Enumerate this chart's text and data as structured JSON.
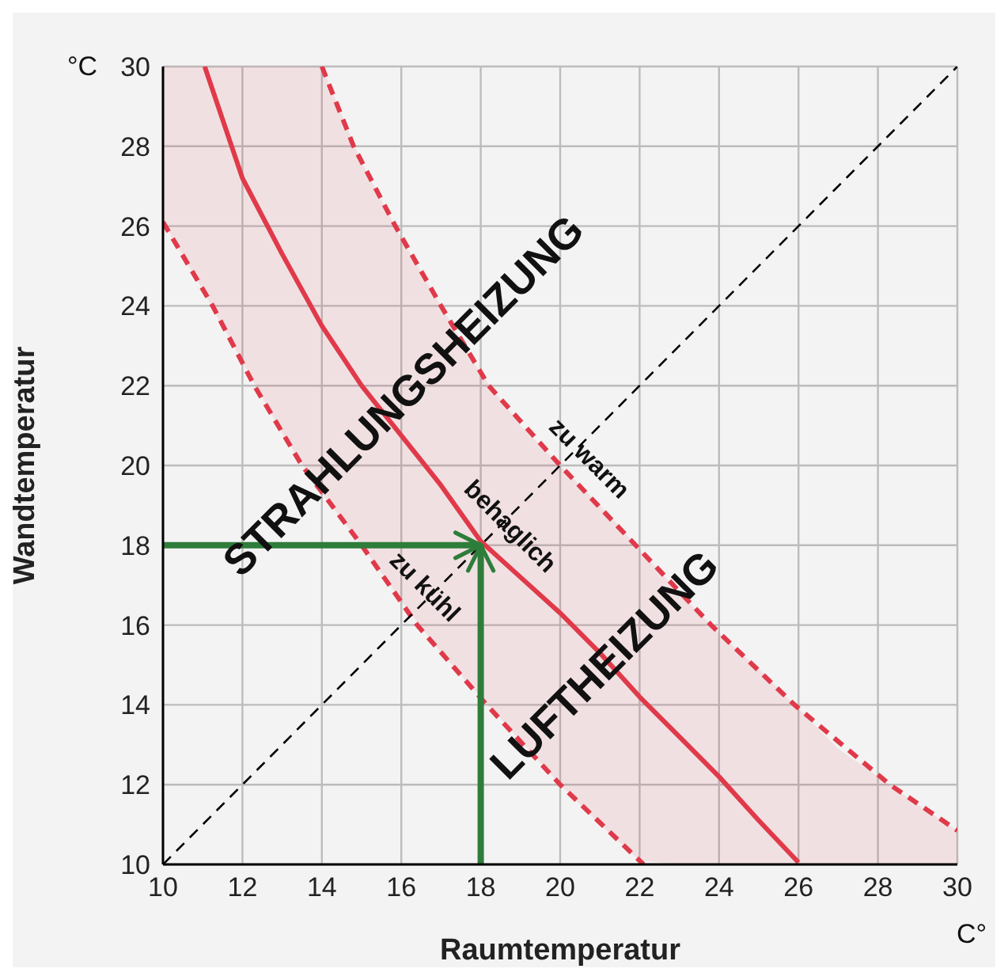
{
  "chart_data": {
    "type": "line",
    "xlabel": "Raumtemperatur",
    "ylabel": "Wandtemperatur",
    "xlim": [
      10,
      30
    ],
    "ylim": [
      10,
      30
    ],
    "xticks": [
      10,
      12,
      14,
      16,
      18,
      20,
      22,
      24,
      26,
      28,
      30
    ],
    "yticks": [
      10,
      12,
      14,
      16,
      18,
      20,
      22,
      24,
      26,
      28,
      30
    ],
    "grid": true,
    "marker": "none",
    "series": [
      {
        "color": "#e03a4a",
        "line_style": "solid",
        "x": [
          10,
          11,
          11.05,
          12,
          13,
          14,
          15,
          16,
          17,
          18,
          19,
          20,
          21,
          22,
          23,
          24,
          25,
          26,
          27,
          28,
          29,
          30
        ],
        "values": [
          null,
          null,
          30,
          27.2,
          25.3,
          23.5,
          22,
          20.75,
          19.5,
          18.1,
          17.2,
          16.3,
          15.3,
          14.2,
          13.2,
          12.2,
          11.1,
          10.05,
          null,
          null,
          null,
          null
        ],
        "lower": [
          26.1,
          24.4,
          24.3,
          22.6,
          20.8,
          19.3,
          18,
          16.6,
          15.3,
          14.2,
          13.1,
          12,
          11,
          10.1,
          10,
          10,
          10,
          10,
          10,
          10,
          10,
          10
        ],
        "upper": [
          30,
          30,
          30,
          30,
          30,
          30,
          27.6,
          25.7,
          24,
          22.3,
          21,
          20,
          19,
          17.9,
          16.8,
          15.8,
          14.9,
          13.9,
          12.9,
          12.2,
          11.5,
          10.85
        ]
      },
      {
        "color": "#e03a4a",
        "line_style": "dashed",
        "x": [
          10,
          11.25,
          12.3,
          13.5,
          15,
          16.4,
          18.15,
          20,
          22.1
        ],
        "values": [
          26.1,
          24,
          22,
          20,
          18,
          16,
          14,
          12,
          10
        ]
      },
      {
        "color": "#e03a4a",
        "line_style": "dashed",
        "x": [
          14,
          14.8,
          15.85,
          17,
          18.2,
          20,
          21.9,
          23.8,
          25.9,
          28.3,
          30
        ],
        "values": [
          30,
          28,
          26,
          24,
          22,
          20,
          18,
          16,
          14,
          12,
          10.85
        ]
      },
      {
        "color": "#000000",
        "line_style": "dashed",
        "x": [
          10,
          30
        ],
        "values": [
          10,
          30
        ]
      },
      {
        "color": "#2e7d3a",
        "line_style": "solid",
        "x": [
          10,
          18
        ],
        "values": [
          18,
          18
        ]
      },
      {
        "color": "#2e7d3a",
        "line_style": "solid",
        "x": [
          18,
          18
        ],
        "values": [
          10,
          18
        ]
      }
    ],
    "annotations": [
      "STRAHLUNGSHEIZUNG",
      "LUFTHEIZUNG",
      "behaglich",
      "zu kühl",
      "zu warm",
      "°C",
      "C°"
    ]
  }
}
